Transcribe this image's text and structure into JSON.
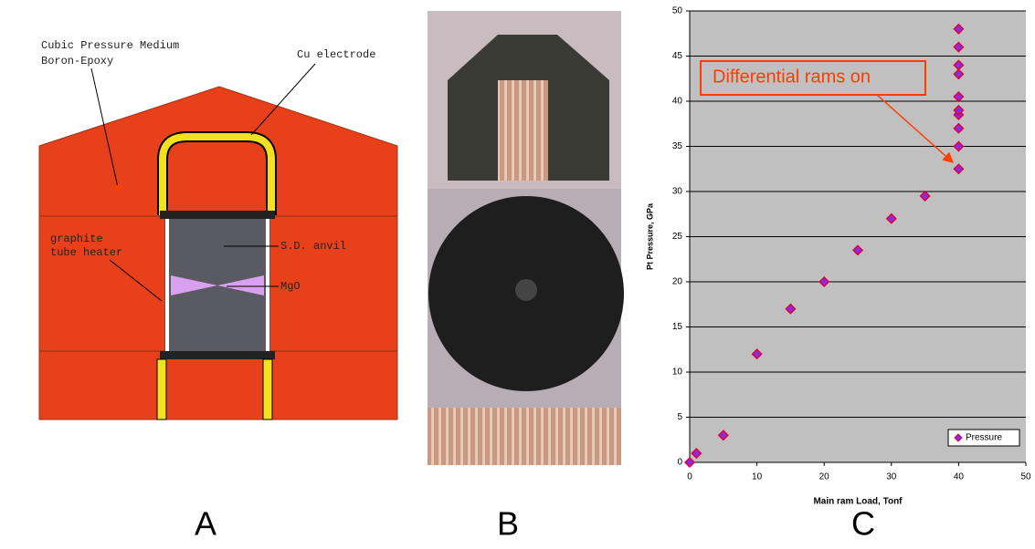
{
  "panels": {
    "labels": [
      "A",
      "B",
      "C"
    ]
  },
  "diagram": {
    "labels": [
      "Cubic Pressure Medium",
      "Boron-Epoxy",
      "Cu electrode",
      "graphite",
      "tube heater",
      "S.D. anvil",
      "MgO"
    ]
  },
  "chart_data": {
    "type": "scatter",
    "xlabel": "Main ram Load, Tonf",
    "ylabel": "Pt Pressure, GPa",
    "annotation": "Differential rams on",
    "x": [
      0,
      1,
      5,
      10,
      15,
      20,
      25,
      30,
      35,
      40,
      40,
      40,
      40,
      40,
      40,
      40,
      40,
      40,
      40
    ],
    "series": [
      {
        "name": "Pressure",
        "color": "#8a2be2",
        "values": [
          0,
          1,
          3,
          12,
          17,
          20,
          23.5,
          27,
          29.5,
          32.5,
          35,
          37,
          38.5,
          39,
          40.5,
          43,
          44,
          46,
          48
        ]
      }
    ],
    "xlim": [
      0,
      50
    ],
    "ylim": [
      0,
      50
    ],
    "xticks": [
      0,
      10,
      20,
      30,
      40,
      50
    ],
    "yticks": [
      0,
      5,
      10,
      15,
      20,
      25,
      30,
      35,
      40,
      45,
      50
    ],
    "grid": true,
    "legend": "lower right",
    "background": "#c0c0c0"
  }
}
